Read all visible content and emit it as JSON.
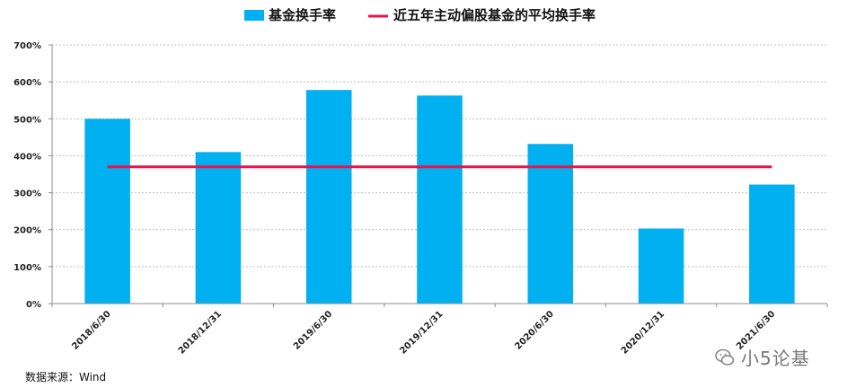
{
  "chart_data": {
    "type": "bar",
    "categories": [
      "2018/6/30",
      "2018/12/31",
      "2019/6/30",
      "2019/12/31",
      "2020/6/30",
      "2020/12/31",
      "2021/6/30"
    ],
    "series": [
      {
        "name": "基金换手率",
        "type": "bar",
        "color": "#00b0f0",
        "values": [
          500,
          410,
          578,
          563,
          432,
          203,
          322
        ]
      },
      {
        "name": "近五年主动偏股基金的平均换手率",
        "type": "line",
        "color": "#e8134a",
        "values": [
          370,
          370,
          370,
          370,
          370,
          370,
          370
        ]
      }
    ],
    "ylim": [
      0,
      700
    ],
    "yticks": [
      "0%",
      "100%",
      "200%",
      "300%",
      "400%",
      "500%",
      "600%",
      "700%"
    ],
    "ytick_values": [
      0,
      100,
      200,
      300,
      400,
      500,
      600,
      700
    ],
    "grid": true,
    "legend_position": "top-center"
  },
  "source_note": "数据来源：Wind",
  "watermark": "小5论基"
}
